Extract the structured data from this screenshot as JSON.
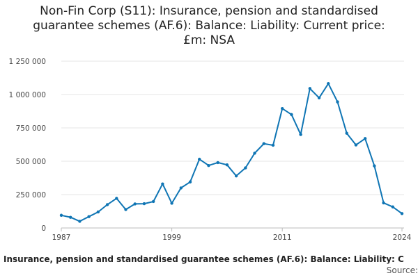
{
  "page": {
    "title_lines": [
      "Non-Fin Corp (S11): Insurance, pension and standardised",
      "guarantee schemes (AF.6): Balance: Liability: Current price:",
      "£m: NSA"
    ],
    "footer_series_label": "Insurance, pension and standardised guarantee schemes (AF.6): Balance: Liability: C",
    "source_label": "Source:"
  },
  "colors": {
    "line": "#0f75b4",
    "grid": "#e6e6e6",
    "axis": "#bbbbbb"
  },
  "chart_data": {
    "type": "line",
    "title": "Non-Fin Corp (S11): Insurance, pension and standardised guarantee schemes (AF.6): Balance: Liability: Current price: £m: NSA",
    "xlabel": "",
    "ylabel": "",
    "xlim": [
      1987,
      2024
    ],
    "ylim": [
      0,
      1250000
    ],
    "x_ticks": [
      1987,
      1999,
      2011,
      2024
    ],
    "x_tick_labels": [
      "1987",
      "1999",
      "2011",
      "2024"
    ],
    "y_ticks": [
      0,
      250000,
      500000,
      750000,
      1000000,
      1250000
    ],
    "y_tick_labels": [
      "0",
      "250 000",
      "500 000",
      "750 000",
      "1 000 000",
      "1 250 000"
    ],
    "grid": true,
    "legend": "none",
    "series": [
      {
        "x": [
          1987,
          1988,
          1989,
          1990,
          1991,
          1992,
          1993,
          1994,
          1995,
          1996,
          1997,
          1998,
          1999,
          2000,
          2001,
          2002,
          2003,
          2004,
          2005,
          2006,
          2007,
          2008,
          2009,
          2010,
          2011,
          2012,
          2013,
          2014,
          2015,
          2016,
          2017,
          2018,
          2019,
          2020,
          2021,
          2022,
          2023,
          2024
        ],
        "values": [
          95000,
          80000,
          50000,
          85000,
          120000,
          175000,
          222000,
          138000,
          180000,
          182000,
          198000,
          330000,
          185000,
          300000,
          345000,
          515000,
          468000,
          490000,
          473000,
          390000,
          450000,
          560000,
          632000,
          620000,
          895000,
          850000,
          700000,
          1045000,
          975000,
          1082000,
          945000,
          710000,
          622000,
          670000,
          465000,
          188000,
          158000,
          108000
        ]
      }
    ]
  }
}
